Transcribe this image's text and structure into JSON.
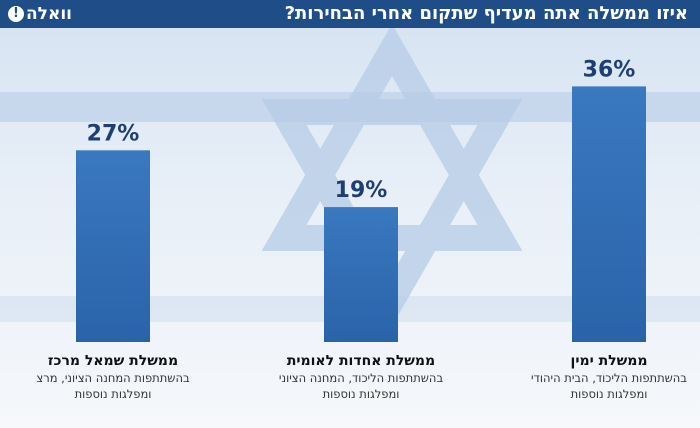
{
  "header": {
    "title": "איזו ממשלה אתה מעדיף שתקום אחרי הבחירות?",
    "logo_text": "וואלה",
    "logo_mark": "!"
  },
  "colors": {
    "header_bg": "#1f4d87",
    "bar_top": "#3a78bf",
    "bar_bottom": "#2a63a8",
    "value_label": "#1f3f73"
  },
  "chart_data": {
    "type": "bar",
    "title": "איזו ממשלה אתה מעדיף שתקום אחרי הבחירות?",
    "categories": [
      "ממשלת שמאל מרכז",
      "ממשלת אחדות לאומית",
      "ממשלת ימין"
    ],
    "category_descriptions": [
      [
        "בהשתתפות המחנה הציוני, מרצ",
        "ומפלגות נוספות"
      ],
      [
        "בהשתתפות הליכוד, המחנה הציוני",
        "ומפלגות נוספות"
      ],
      [
        "בהשתתפות הליכוד, הבית היהודי",
        "ומפלגות נוספות"
      ]
    ],
    "values": [
      27,
      19,
      36
    ],
    "value_labels": [
      "27%",
      "19%",
      "36%"
    ],
    "unit": "%",
    "ylim": [
      0,
      40
    ],
    "grid": false,
    "legend": "none"
  }
}
